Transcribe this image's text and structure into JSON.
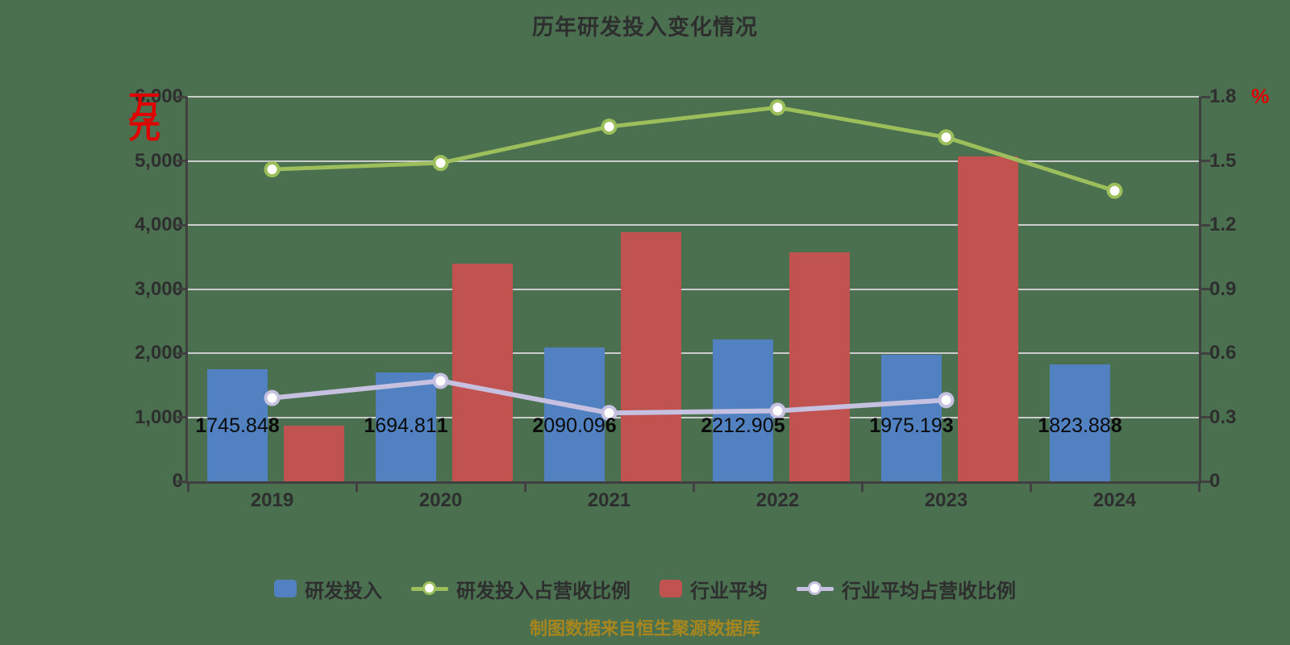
{
  "title": "历年研发投入变化情况",
  "caption": "制图数据来自恒生聚源数据库",
  "colors": {
    "background": "#4a7050",
    "title_text": "#2e2e2e",
    "axis_text": "#2e2e2e",
    "axis_line": "#404040",
    "grid_line": "#cccccc",
    "value_label_text": "#0b0b0b",
    "bar_rd": "#5181c0",
    "bar_industry": "#c0524f",
    "line_rd_ratio": "#9cbf5b",
    "line_industry_ratio": "#c6c1e0",
    "marker_fill": "#ffffff",
    "unit_text": "#e00000",
    "caption_text": "#a8861e"
  },
  "left_axis": {
    "unit": "万元",
    "ticks": [
      "6,000",
      "5,000",
      "4,000",
      "3,000",
      "2,000",
      "1,000",
      "0"
    ],
    "min": 0,
    "max": 6000
  },
  "right_axis": {
    "unit": "%",
    "ticks": [
      "1.8",
      "1.5",
      "1.2",
      "0.9",
      "0.6",
      "0.3",
      "0"
    ],
    "min": 0,
    "max": 1.8
  },
  "legend": [
    {
      "key": "rd-investment",
      "label": "研发投入",
      "type": "bar",
      "color": "#5181c0"
    },
    {
      "key": "rd-ratio",
      "label": "研发投入占营收比例",
      "type": "line",
      "color": "#9cbf5b"
    },
    {
      "key": "industry-average",
      "label": "行业平均",
      "type": "bar",
      "color": "#c0524f"
    },
    {
      "key": "industry-ratio",
      "label": "行业平均占营收比例",
      "type": "line",
      "color": "#c6c1e0"
    }
  ],
  "chart_data": {
    "type": "bar+line combo",
    "categories": [
      "2019",
      "2020",
      "2021",
      "2022",
      "2023",
      "2024"
    ],
    "grid": true,
    "left_ylim": [
      0,
      6000
    ],
    "right_ylim": [
      0,
      1.8
    ],
    "series": [
      {
        "key": "rd-investment",
        "name": "研发投入",
        "type": "bar",
        "axis": "left",
        "unit": "万元",
        "color": "#5181c0",
        "values": [
          1745.848,
          1694.811,
          2090.096,
          2212.905,
          1975.193,
          1823.888
        ],
        "labels": [
          "1745.848",
          "1694.811",
          "2090.096",
          "2212.905",
          "1975.193",
          "1823.888"
        ]
      },
      {
        "key": "industry-average",
        "name": "行业平均",
        "type": "bar",
        "axis": "left",
        "unit": "万元",
        "color": "#c0524f",
        "values": [
          870,
          3390,
          3890,
          3570,
          5070,
          null
        ]
      },
      {
        "key": "rd-ratio",
        "name": "研发投入占营收比例",
        "type": "line",
        "axis": "right",
        "unit": "%",
        "color": "#9cbf5b",
        "values": [
          1.46,
          1.49,
          1.66,
          1.75,
          1.61,
          1.36
        ]
      },
      {
        "key": "industry-ratio",
        "name": "行业平均占营收比例",
        "type": "line",
        "axis": "right",
        "unit": "%",
        "color": "#c6c1e0",
        "values": [
          0.39,
          0.47,
          0.32,
          0.33,
          0.38,
          null
        ]
      }
    ]
  }
}
